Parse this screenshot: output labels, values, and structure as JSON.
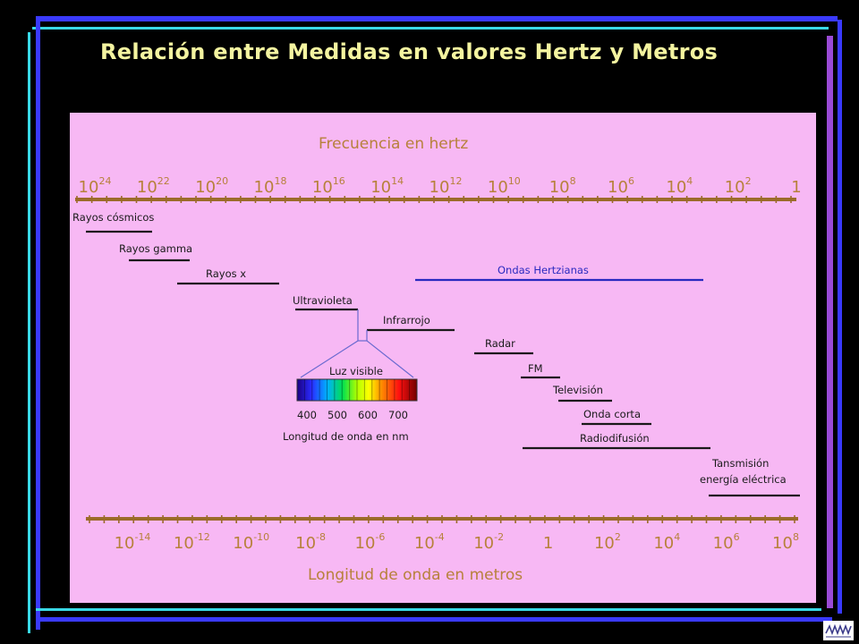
{
  "title": "Relación entre Medidas en  valores Hertz  y Metros",
  "colors": {
    "background": "#000000",
    "panel": "#f7b8f4",
    "axis": "#9b6b2a",
    "axis_text": "#b7813b",
    "band_line": "#1a1a1a",
    "hertzian_line": "#2a2ac0",
    "frame_blue": "#3a3aff",
    "frame_purple": "#9a4bd6",
    "frame_cyan": "#39d8e6",
    "title_text": "#f4f4a0"
  },
  "frequency_axis": {
    "title": "Frecuencia en hertz",
    "ticks": [
      {
        "base": "10",
        "exp": "24"
      },
      {
        "base": "10",
        "exp": "22"
      },
      {
        "base": "10",
        "exp": "20"
      },
      {
        "base": "10",
        "exp": "18"
      },
      {
        "base": "10",
        "exp": "16"
      },
      {
        "base": "10",
        "exp": "14"
      },
      {
        "base": "10",
        "exp": "12"
      },
      {
        "base": "10",
        "exp": "10"
      },
      {
        "base": "10",
        "exp": "8"
      },
      {
        "base": "10",
        "exp": "6"
      },
      {
        "base": "10",
        "exp": "4"
      },
      {
        "base": "10",
        "exp": "2"
      },
      {
        "base": "1",
        "exp": ""
      }
    ]
  },
  "wavelength_axis": {
    "title": "Longitud de onda en metros",
    "ticks": [
      {
        "base": "10",
        "exp": "-14"
      },
      {
        "base": "10",
        "exp": "-12"
      },
      {
        "base": "10",
        "exp": "-10"
      },
      {
        "base": "10",
        "exp": "-8"
      },
      {
        "base": "10",
        "exp": "-6"
      },
      {
        "base": "10",
        "exp": "-4"
      },
      {
        "base": "10",
        "exp": "-2"
      },
      {
        "base": "1",
        "exp": ""
      },
      {
        "base": "10",
        "exp": "2"
      },
      {
        "base": "10",
        "exp": "4"
      },
      {
        "base": "10",
        "exp": "6"
      },
      {
        "base": "10",
        "exp": "8"
      }
    ]
  },
  "bands": [
    {
      "id": "rayos-cosmicos",
      "label": "Rayos cósmicos"
    },
    {
      "id": "rayos-gamma",
      "label": "Rayos gamma"
    },
    {
      "id": "rayos-x",
      "label": "Rayos x"
    },
    {
      "id": "ondas-hertzianas",
      "label": "Ondas Hertzianas"
    },
    {
      "id": "ultravioleta",
      "label": "Ultravioleta"
    },
    {
      "id": "infrarrojo",
      "label": "Infrarrojo"
    },
    {
      "id": "radar",
      "label": "Radar"
    },
    {
      "id": "fm",
      "label": "FM"
    },
    {
      "id": "television",
      "label": "Televisión"
    },
    {
      "id": "onda-corta",
      "label": "Onda corta"
    },
    {
      "id": "radiodifusion",
      "label": "Radiodifusión"
    },
    {
      "id": "transmision-1",
      "label": "Tansmisión"
    },
    {
      "id": "transmision-2",
      "label": "energía eléctrica"
    }
  ],
  "visible_light": {
    "title": "Luz visible",
    "ticks": [
      "400",
      "500",
      "600",
      "700"
    ],
    "caption": "Longitud de onda en nm"
  }
}
